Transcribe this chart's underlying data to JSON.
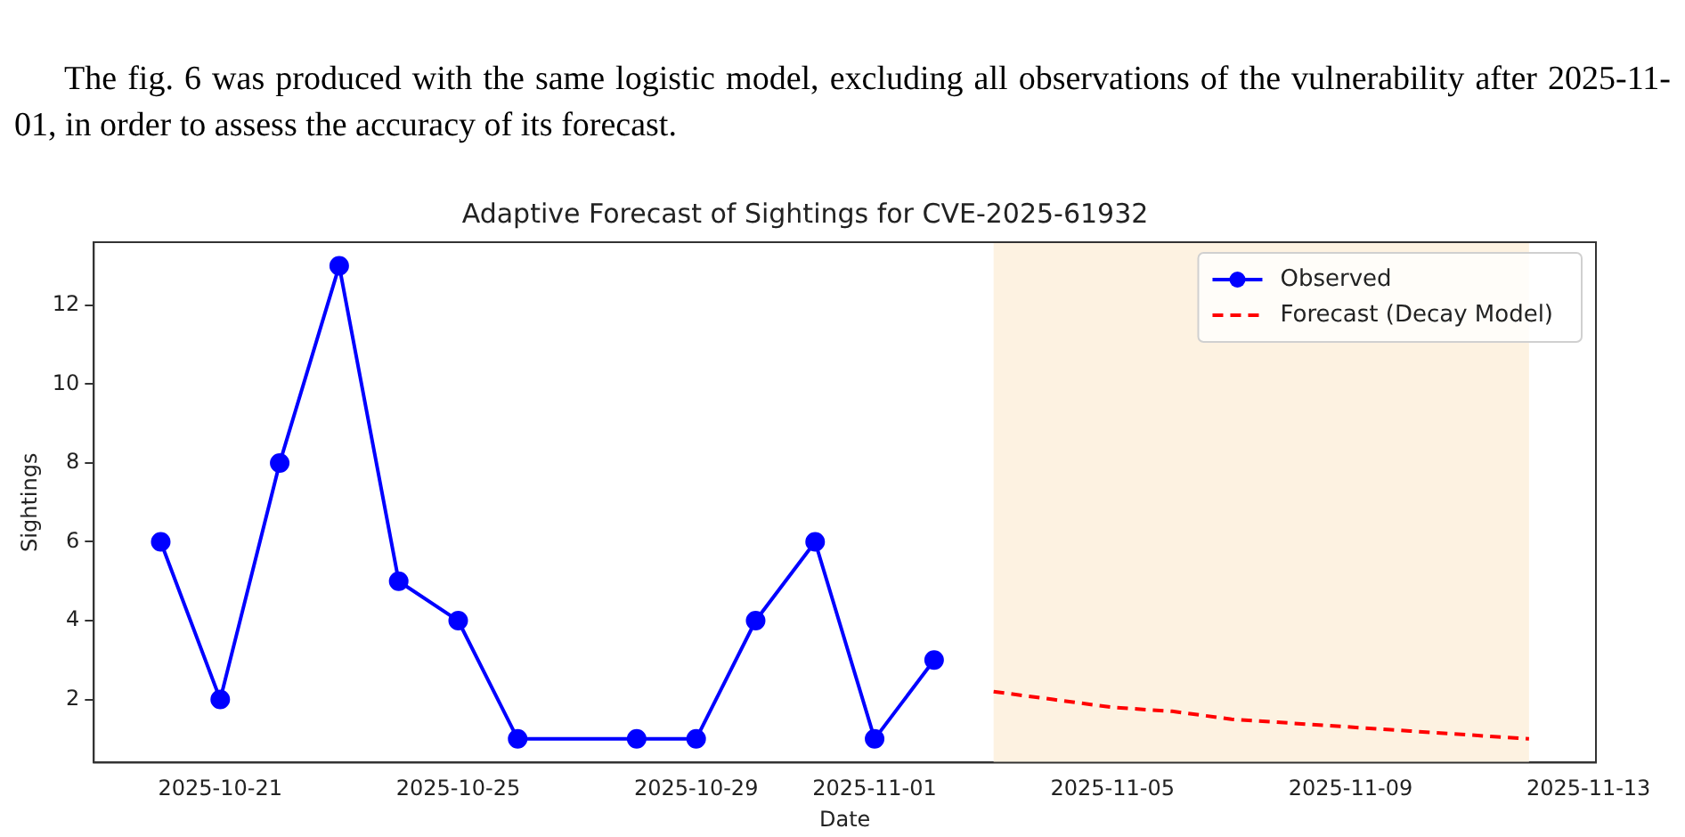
{
  "chart_data": {
    "type": "line",
    "title": "Adaptive Forecast of Sightings for CVE-2025-61932",
    "xlabel": "Date",
    "ylabel": "Sightings",
    "annotations": [
      "The fig. 6 was produced with the same logistic model, excluding all observations of the vulnerability after 2025-11-01, in order to assess the accuracy of its forecast."
    ],
    "xlim": [
      "2025-10-18T21:00",
      "2025-11-13T03:00"
    ],
    "xticks": [
      "2025-10-21",
      "2025-10-25",
      "2025-10-29",
      "2025-11-01",
      "2025-11-05",
      "2025-11-09",
      "2025-11-13"
    ],
    "ylim": [
      0.4,
      13.6
    ],
    "yticks": [
      2,
      4,
      6,
      8,
      10,
      12
    ],
    "grid": false,
    "legend": "top right",
    "bands": [
      {
        "axis": "x",
        "from": "2025-11-03",
        "to": "2025-11-12",
        "color": "#fdf2e1"
      }
    ],
    "series": [
      {
        "name": "Observed",
        "color": "#0000ff",
        "marker": "circle",
        "line_style": "solid",
        "x": [
          "2025-10-20",
          "2025-10-21",
          "2025-10-22",
          "2025-10-23",
          "2025-10-24",
          "2025-10-25",
          "2025-10-26",
          "2025-10-28",
          "2025-10-29",
          "2025-10-30",
          "2025-10-31",
          "2025-11-01",
          "2025-11-02"
        ],
        "values": [
          6,
          2,
          8,
          13,
          5,
          4,
          1,
          1,
          1,
          4,
          6,
          1,
          3
        ]
      },
      {
        "name": "Forecast (Decay Model)",
        "color": "#ff0000",
        "marker": "none",
        "line_style": "dashed",
        "x": [
          "2025-11-03",
          "2025-11-04",
          "2025-11-05",
          "2025-11-06",
          "2025-11-07",
          "2025-11-08",
          "2025-11-09",
          "2025-11-10",
          "2025-11-11",
          "2025-11-12"
        ],
        "values": [
          2.2,
          2.0,
          1.8,
          1.7,
          1.5,
          1.4,
          1.3,
          1.2,
          1.1,
          1.0
        ]
      }
    ]
  }
}
